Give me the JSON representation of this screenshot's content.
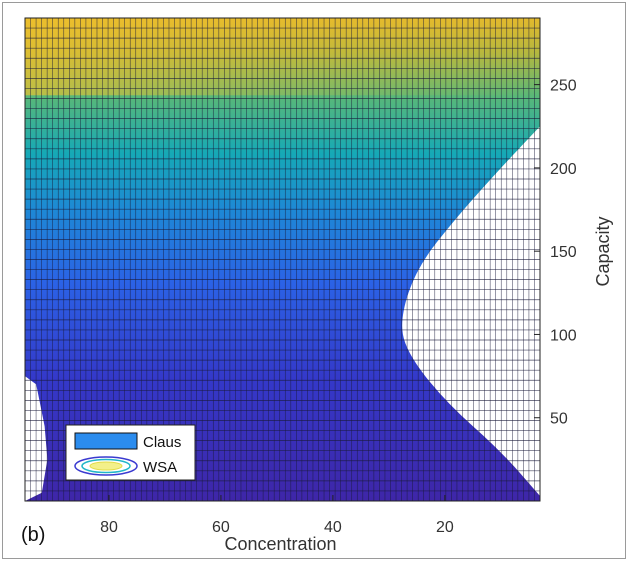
{
  "panel_label": "(b)",
  "chart_data": {
    "type": "heatmap",
    "title": "",
    "xlabel": "Concentration",
    "ylabel": "Capacity",
    "x_reversed": true,
    "xlim": [
      95,
      3
    ],
    "ylim": [
      0,
      290
    ],
    "x_ticks": [
      80,
      60,
      40,
      20
    ],
    "y_ticks": [
      50,
      100,
      150,
      200,
      250
    ],
    "y_axis_position": "right",
    "grid": true,
    "colormap": [
      "#3e26a8",
      "#4746eb",
      "#2c6efb",
      "#1f8fe0",
      "#11a8c9",
      "#2ebba2",
      "#7fbf67",
      "#c7b93c",
      "#f7c83b",
      "#f9fb15"
    ],
    "surface_description_values": {
      "grid_x_steps": 93,
      "grid_y_steps": 48
    },
    "regions": [
      {
        "name": "Claus",
        "color": "#2b8cee",
        "note": "shaded surface"
      },
      {
        "name": "WSA",
        "color": "#ffffff",
        "boundary_right": [
          [
            3,
            3
          ],
          [
            10,
            30
          ],
          [
            20,
            60
          ],
          [
            27,
            90
          ],
          [
            28,
            110
          ],
          [
            25,
            140
          ],
          [
            18,
            170
          ],
          [
            10,
            200
          ],
          [
            3,
            225
          ]
        ],
        "boundary_left": [
          [
            95,
            0
          ],
          [
            92,
            5
          ],
          [
            91,
            25
          ],
          [
            91.5,
            45
          ],
          [
            93,
            70
          ],
          [
            95,
            75
          ]
        ]
      }
    ],
    "legend": {
      "position": "bottom-left",
      "entries": [
        "Claus",
        "WSA"
      ]
    }
  }
}
